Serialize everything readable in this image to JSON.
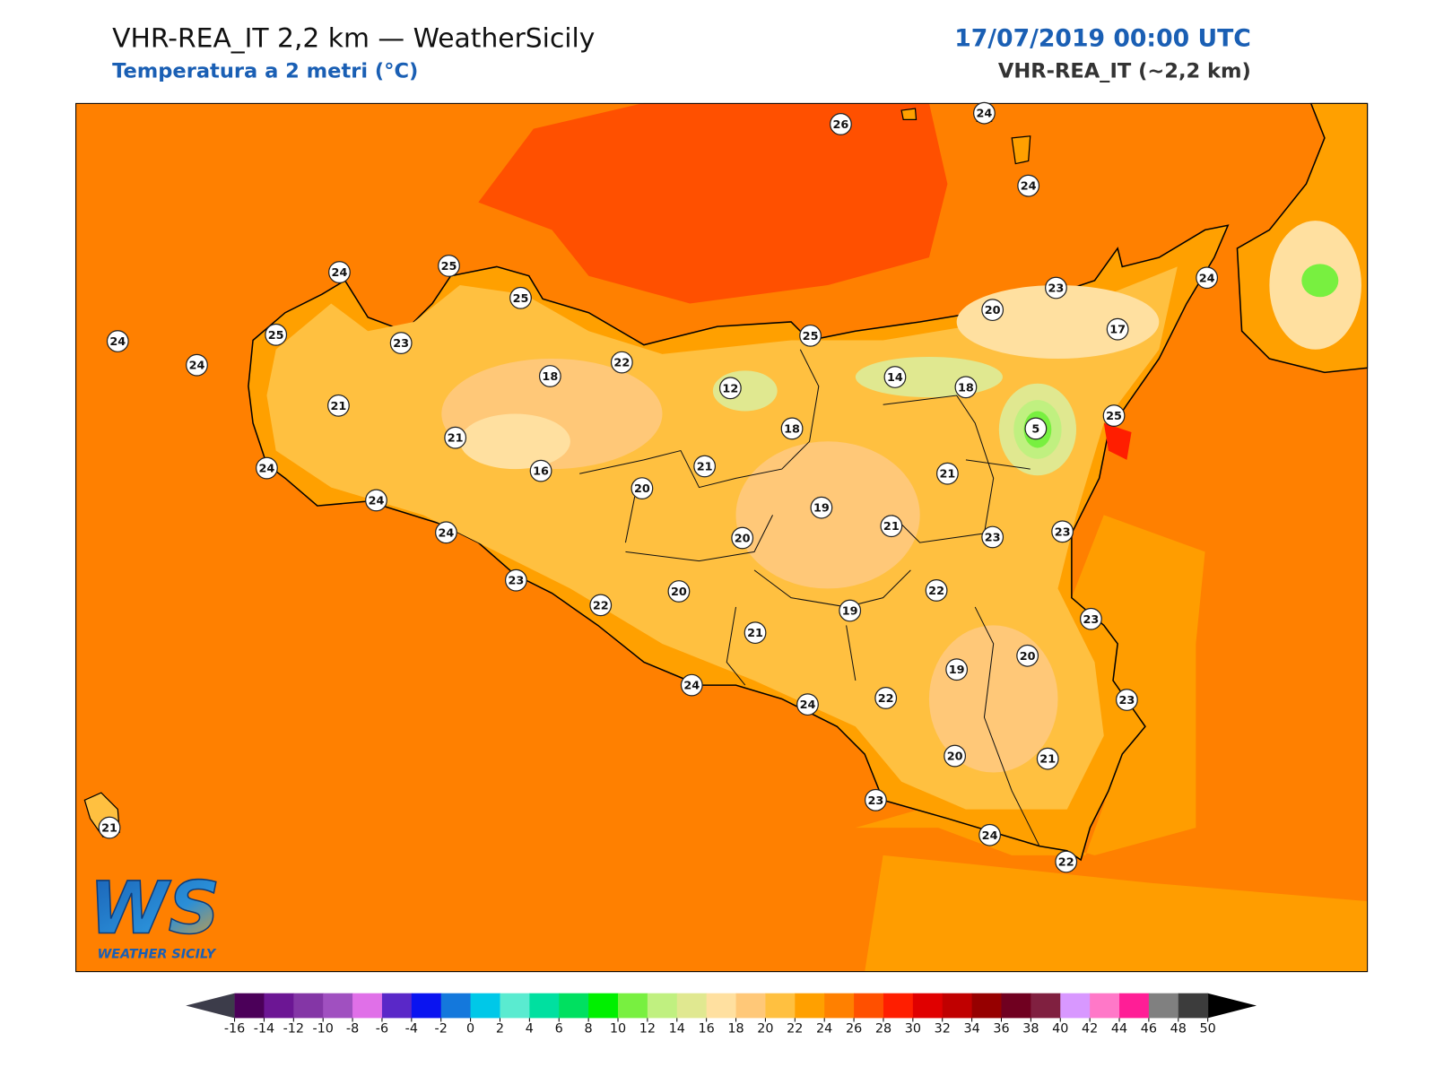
{
  "header": {
    "title": "VHR-REA_IT 2,2 km — WeatherSicily",
    "subtitle": "Temperatura a 2 metri (°C)",
    "datetime": "17/07/2019 00:00 UTC",
    "model": "VHR-REA_IT (~2,2 km)"
  },
  "map": {
    "stations": [
      26,
      24,
      24,
      24,
      25,
      25,
      24,
      25,
      23,
      24,
      21,
      18,
      22,
      12,
      25,
      18,
      14,
      18,
      20,
      23,
      17,
      24,
      5,
      25,
      21,
      16,
      20,
      21,
      24,
      24,
      24,
      19,
      20,
      21,
      21,
      23,
      23,
      23,
      22,
      20,
      21,
      19,
      22,
      23,
      20,
      19,
      23,
      24,
      24,
      22,
      20,
      21,
      23,
      24,
      22,
      21
    ],
    "colorbar": {
      "ticks": [
        -16,
        -14,
        -12,
        -10,
        -8,
        -6,
        -4,
        -2,
        0,
        2,
        4,
        6,
        8,
        10,
        12,
        14,
        16,
        18,
        20,
        22,
        24,
        26,
        28,
        30,
        32,
        34,
        36,
        38,
        40,
        42,
        44,
        46,
        48,
        50
      ],
      "colors": [
        "#4b0059",
        "#6c1694",
        "#8436a6",
        "#a050c0",
        "#e070e8",
        "#5a28c8",
        "#0a14f0",
        "#1478dc",
        "#00c8e8",
        "#5aebd0",
        "#00e0a0",
        "#00e060",
        "#00f000",
        "#78f040",
        "#c0f080",
        "#e0e890",
        "#ffe0a0",
        "#ffc878",
        "#ffc040",
        "#ffa000",
        "#ff8000",
        "#ff5000",
        "#ff1e00",
        "#e00000",
        "#c00000",
        "#960000",
        "#700020",
        "#802040",
        "#d898ff",
        "#ff78c8",
        "#ff1e96",
        "#808080",
        "#3c3c3c"
      ],
      "under_color": "#3c3c4a",
      "over_color": "#000000"
    }
  },
  "logo": {
    "mark": "WS",
    "name": "WEATHER SICILY"
  }
}
